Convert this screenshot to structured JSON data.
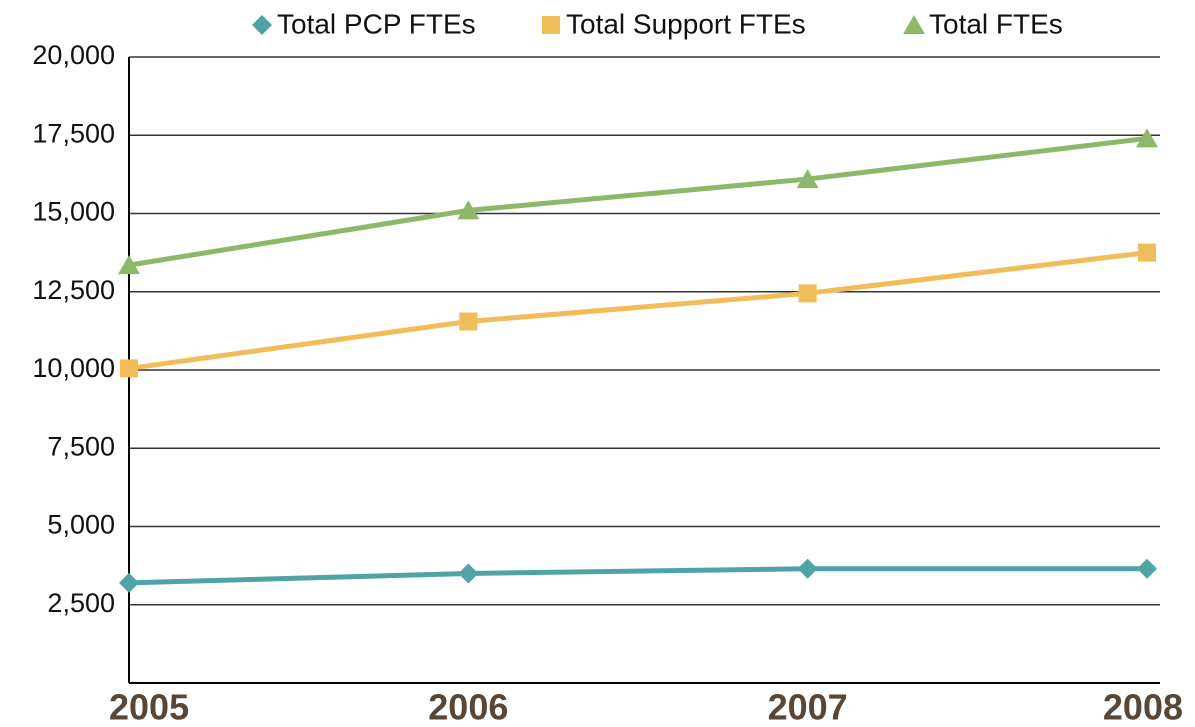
{
  "chart_data": {
    "type": "line",
    "categories": [
      "2005",
      "2006",
      "2007",
      "2008"
    ],
    "series": [
      {
        "name": "Total PCP FTEs",
        "color": "#4fa3a5",
        "marker": "diamond",
        "values": [
          3200,
          3500,
          3650,
          3650
        ]
      },
      {
        "name": "Total Support FTEs",
        "color": "#f0bd5a",
        "marker": "square",
        "values": [
          10050,
          11550,
          12450,
          13750
        ]
      },
      {
        "name": "Total FTEs",
        "color": "#8db86a",
        "marker": "triangle",
        "values": [
          13350,
          15100,
          16100,
          17400
        ]
      }
    ],
    "ylim": [
      0,
      20000
    ],
    "yticks": [
      {
        "value": 2500,
        "label": "2,500"
      },
      {
        "value": 5000,
        "label": "5,000"
      },
      {
        "value": 7500,
        "label": "7,500"
      },
      {
        "value": 10000,
        "label": "10,000"
      },
      {
        "value": 12500,
        "label": "12,500"
      },
      {
        "value": 15000,
        "label": "15,000"
      },
      {
        "value": 17500,
        "label": "17,500"
      },
      {
        "value": 20000,
        "label": "20,000"
      }
    ],
    "grid": true,
    "legend": "top"
  }
}
